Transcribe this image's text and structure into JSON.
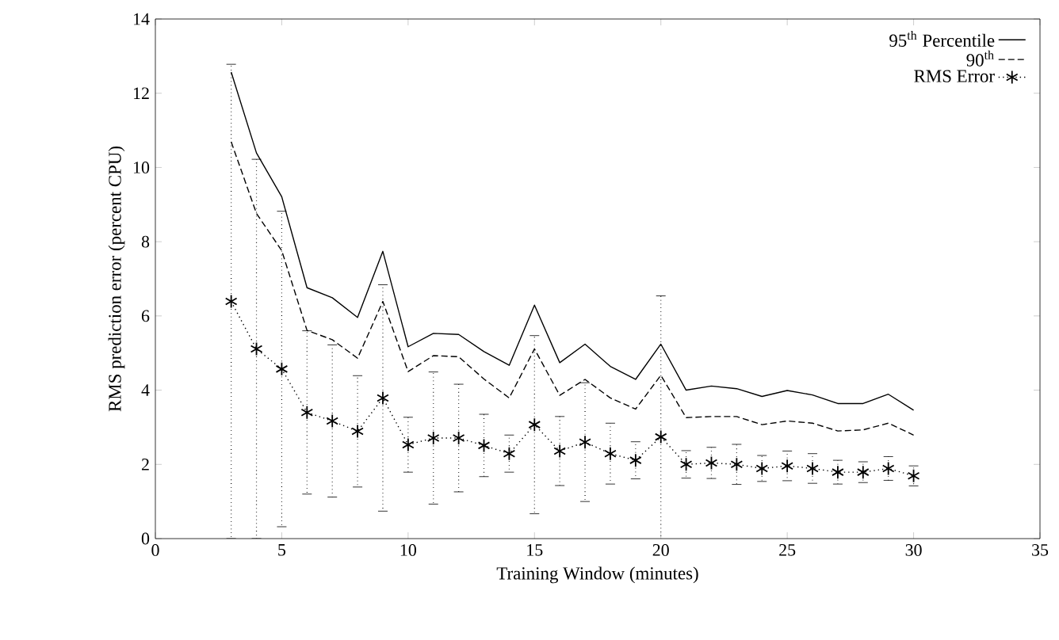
{
  "chart_data": {
    "type": "line",
    "xlabel": "Training Window (minutes)",
    "ylabel": "RMS prediction error (percent CPU)",
    "x": [
      3,
      4,
      5,
      6,
      7,
      8,
      9,
      10,
      11,
      12,
      13,
      14,
      15,
      16,
      17,
      18,
      19,
      20,
      21,
      22,
      23,
      24,
      25,
      26,
      27,
      28,
      29,
      30
    ],
    "series": [
      {
        "name": "95$^{th}$ Percentile",
        "color": "#000000",
        "line_style": "solid",
        "marker": "none",
        "values": [
          12.57,
          10.39,
          9.21,
          6.76,
          6.49,
          5.96,
          7.74,
          5.17,
          5.53,
          5.5,
          5.04,
          4.67,
          6.29,
          4.74,
          5.24,
          4.64,
          4.29,
          5.24,
          4.0,
          4.11,
          4.04,
          3.83,
          3.99,
          3.87,
          3.64,
          3.64,
          3.89,
          3.46
        ]
      },
      {
        "name": "90$^{th}$",
        "color": "#000000",
        "line_style": "dashed",
        "marker": "none",
        "values": [
          10.69,
          8.76,
          7.76,
          5.61,
          5.36,
          4.86,
          6.39,
          4.5,
          4.93,
          4.9,
          4.3,
          3.79,
          5.11,
          3.86,
          4.29,
          3.79,
          3.49,
          4.4,
          3.26,
          3.29,
          3.29,
          3.07,
          3.17,
          3.11,
          2.9,
          2.93,
          3.11,
          2.79
        ]
      },
      {
        "name": "RMS Error",
        "color": "#000000",
        "line_style": "dotted",
        "marker": "cross",
        "values": [
          6.39,
          5.11,
          4.57,
          3.4,
          3.17,
          2.89,
          3.79,
          2.53,
          2.71,
          2.71,
          2.51,
          2.29,
          3.07,
          2.36,
          2.6,
          2.29,
          2.11,
          2.74,
          2.0,
          2.04,
          2.0,
          1.89,
          1.96,
          1.89,
          1.79,
          1.79,
          1.89,
          1.69
        ],
        "errors": [
          6.39,
          5.11,
          4.25,
          2.2,
          2.05,
          1.5,
          3.05,
          0.74,
          1.78,
          1.45,
          0.84,
          0.5,
          2.4,
          0.93,
          1.6,
          0.82,
          0.5,
          3.8,
          0.37,
          0.42,
          0.54,
          0.35,
          0.4,
          0.4,
          0.32,
          0.28,
          0.32,
          0.27
        ]
      }
    ],
    "xlim": [
      0,
      35
    ],
    "xticks": [
      0,
      5,
      10,
      15,
      20,
      25,
      30,
      35
    ],
    "ylim": [
      0,
      14
    ],
    "yticks": [
      0,
      2,
      4,
      6,
      8,
      10,
      12,
      14
    ],
    "grid": false,
    "legend": "top right"
  }
}
